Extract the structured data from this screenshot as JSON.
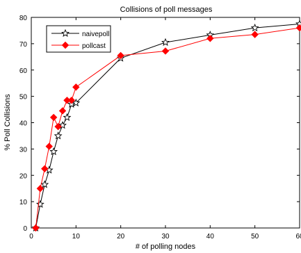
{
  "chart_data": {
    "type": "line",
    "title": "Collisions of poll messages",
    "xlabel": "# of polling nodes",
    "ylabel": "% Poll Collisions",
    "xlim": [
      0,
      60
    ],
    "ylim": [
      0,
      80
    ],
    "xticks": [
      0,
      10,
      20,
      30,
      40,
      50,
      60
    ],
    "yticks": [
      0,
      10,
      20,
      30,
      40,
      50,
      60,
      70,
      80
    ],
    "grid": false,
    "legend_position": "top-left",
    "series": [
      {
        "name": "naivepoll",
        "color": "#000000",
        "marker": "star",
        "x": [
          1,
          2,
          3,
          4,
          5,
          6,
          7,
          8,
          9,
          10,
          20,
          30,
          40,
          50,
          60
        ],
        "y": [
          0,
          9,
          16.5,
          22,
          29,
          35,
          39,
          42,
          47,
          47.5,
          64.5,
          70.5,
          73.3,
          76,
          77.5
        ]
      },
      {
        "name": "pollcast",
        "color": "#ff0000",
        "marker": "diamond",
        "x": [
          1,
          2,
          3,
          4,
          5,
          6,
          7,
          8,
          9,
          10,
          20,
          30,
          40,
          50,
          60
        ],
        "y": [
          0,
          15,
          22.5,
          31,
          42,
          38.5,
          44.5,
          48.5,
          48.5,
          53.5,
          65.5,
          67.2,
          72,
          73.5,
          76
        ]
      }
    ]
  }
}
